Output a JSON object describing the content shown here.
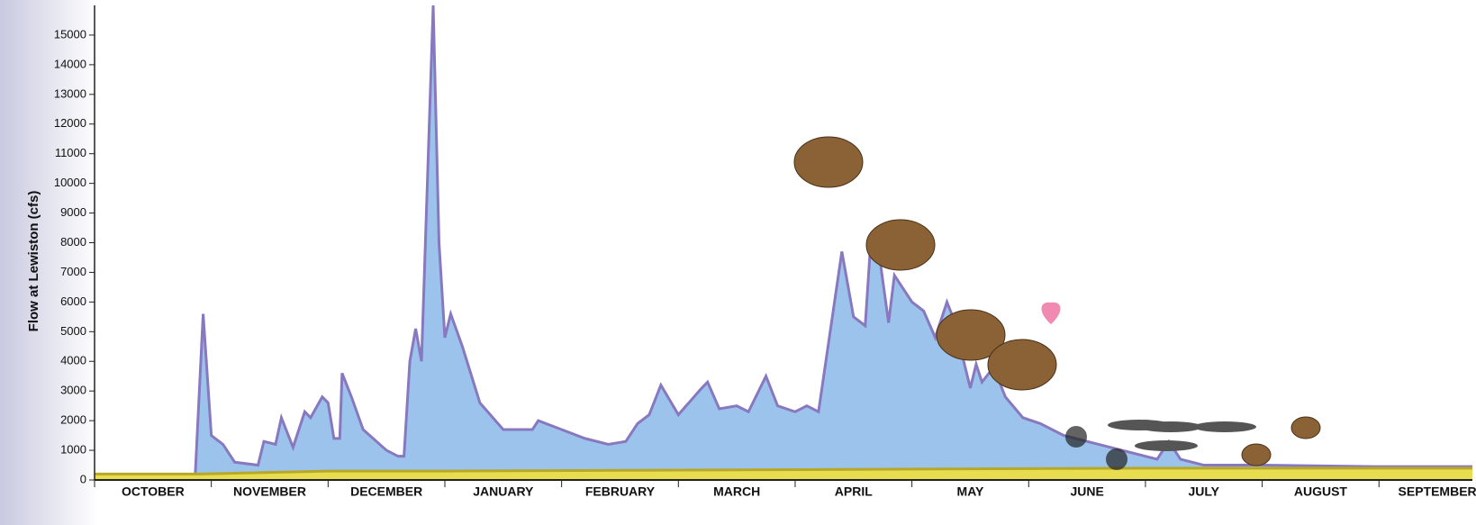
{
  "chart_data": {
    "type": "area",
    "y_label": "Flow at Lewiston (cfs)",
    "xlim": [
      0,
      11.8
    ],
    "xticks": [
      {
        "value": 0.5,
        "label": "OCTOBER"
      },
      {
        "value": 1.5,
        "label": "NOVEMBER"
      },
      {
        "value": 2.5,
        "label": "DECEMBER"
      },
      {
        "value": 3.5,
        "label": "JANUARY"
      },
      {
        "value": 4.5,
        "label": "FEBRUARY"
      },
      {
        "value": 5.5,
        "label": "MARCH"
      },
      {
        "value": 6.5,
        "label": "APRIL"
      },
      {
        "value": 7.5,
        "label": "MAY"
      },
      {
        "value": 8.5,
        "label": "JUNE"
      },
      {
        "value": 9.5,
        "label": "JULY"
      },
      {
        "value": 10.5,
        "label": "AUGUST"
      },
      {
        "value": 11.5,
        "label": "SEPTEMBER"
      }
    ],
    "ylim": [
      0,
      16000
    ],
    "yticks": [
      0,
      1000,
      2000,
      3000,
      4000,
      5000,
      6000,
      7000,
      8000,
      9000,
      10000,
      11000,
      12000,
      13000,
      14000,
      15000
    ],
    "series": [
      {
        "color": "#9cc3ec",
        "stroke": "#8878c0",
        "x": [
          0.86,
          0.93,
          1.0,
          1.1,
          1.2,
          1.4,
          1.45,
          1.55,
          1.6,
          1.7,
          1.8,
          1.85,
          1.95,
          2.0,
          2.05,
          2.1,
          2.12,
          2.2,
          2.3,
          2.5,
          2.6,
          2.65,
          2.7,
          2.75,
          2.8,
          2.85,
          2.9,
          2.95,
          3.0,
          3.05,
          3.15,
          3.3,
          3.5,
          3.75,
          3.8,
          4.0,
          4.2,
          4.4,
          4.55,
          4.65,
          4.75,
          4.85,
          5.0,
          5.2,
          5.25,
          5.35,
          5.5,
          5.6,
          5.75,
          5.85,
          6.0,
          6.1,
          6.2,
          6.4,
          6.5,
          6.6,
          6.65,
          6.72,
          6.8,
          6.85,
          7.0,
          7.1,
          7.2,
          7.3,
          7.35,
          7.5,
          7.55,
          7.6,
          7.7,
          7.8,
          7.95,
          8.1,
          8.3,
          8.5,
          8.8,
          9.0,
          9.1,
          9.2,
          9.3,
          9.5,
          10.0,
          11.0,
          11.8
        ],
        "values": [
          0,
          5600,
          1500,
          1200,
          600,
          500,
          1300,
          1200,
          2100,
          1100,
          2300,
          2100,
          2800,
          2600,
          1400,
          1400,
          3600,
          2800,
          1700,
          1000,
          800,
          800,
          4000,
          5100,
          4000,
          10000,
          16000,
          8000,
          4800,
          5600,
          4500,
          2600,
          1700,
          1700,
          2000,
          1700,
          1400,
          1200,
          1300,
          1900,
          2200,
          3200,
          2200,
          3100,
          3300,
          2400,
          2500,
          2300,
          3500,
          2500,
          2300,
          2500,
          2300,
          7700,
          5500,
          5200,
          8200,
          7600,
          5300,
          6900,
          6000,
          5700,
          4800,
          6000,
          5500,
          3100,
          3900,
          3300,
          3800,
          2800,
          2100,
          1900,
          1500,
          1300,
          1000,
          800,
          700,
          1300,
          700,
          500,
          500,
          450,
          450
        ]
      },
      {
        "color": "#e8dc50",
        "stroke": "#b8a828",
        "x": [
          0,
          0.9,
          2.0,
          3.0,
          6.0,
          9.0,
          11.8
        ],
        "values": [
          200,
          200,
          300,
          300,
          350,
          400,
          400
        ]
      }
    ]
  }
}
